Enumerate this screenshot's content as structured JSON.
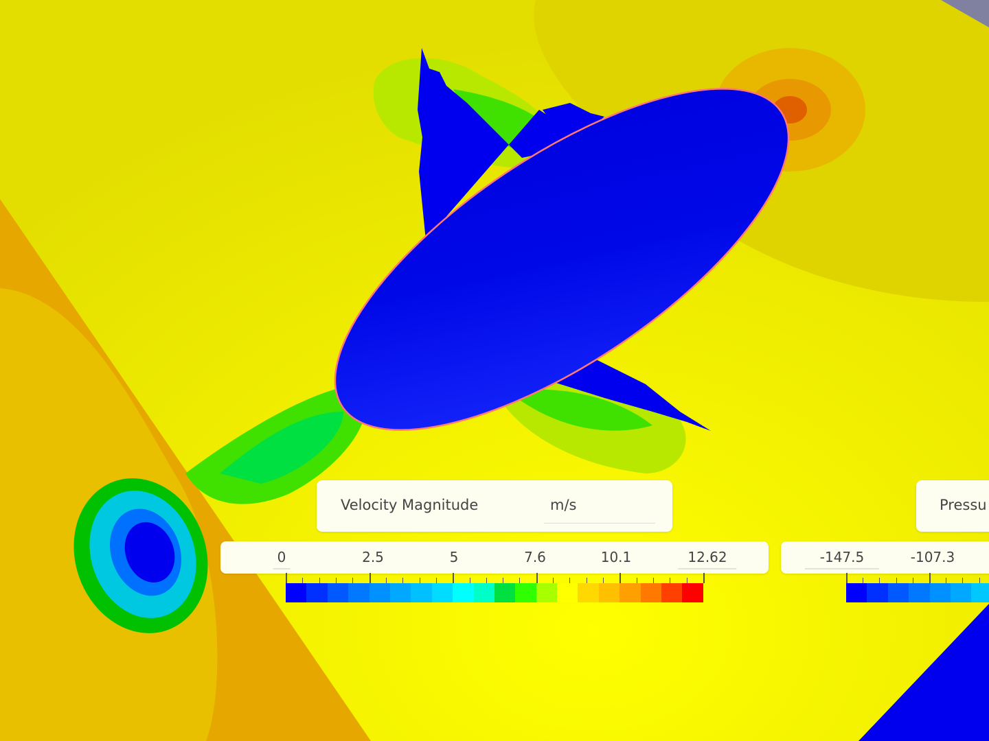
{
  "velocity_legend": {
    "title": "Velocity Magnitude",
    "unit": "m/s",
    "tick_labels": [
      "0",
      "2.5",
      "5",
      "7.6",
      "10.1",
      "12.62"
    ],
    "range_min": 0,
    "range_max": 12.62,
    "colors": [
      "#0000ff",
      "#0030ff",
      "#0058ff",
      "#0078ff",
      "#0090ff",
      "#00a8ff",
      "#00c0ff",
      "#00dcff",
      "#00ffff",
      "#00ffc8",
      "#00e040",
      "#30ff00",
      "#a8ff00",
      "#ffff00",
      "#ffd800",
      "#ffc000",
      "#ffa000",
      "#ff7800",
      "#ff4000",
      "#ff0000"
    ]
  },
  "pressure_legend": {
    "title": "Pressu",
    "tick_labels": [
      "-147.5",
      "-107.3"
    ],
    "colors": [
      "#0000ff",
      "#0030ff",
      "#0058ff",
      "#0078ff",
      "#0090ff",
      "#00a8ff",
      "#00c8ff"
    ]
  },
  "scene": {
    "background_color": "#e8e400",
    "body_color": "#0000ee",
    "edge_color": "#ff7070"
  }
}
